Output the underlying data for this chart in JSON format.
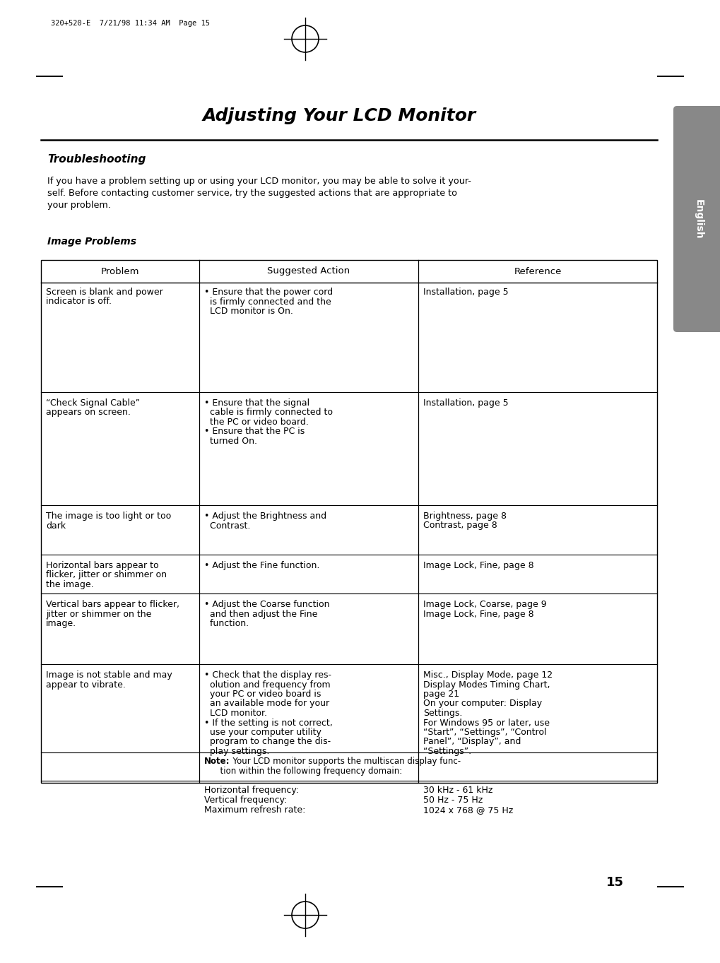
{
  "page_bg": "#ffffff",
  "header_text": "320+520-E  7/21/98 11:34 AM  Page 15",
  "title": "Adjusting Your LCD Monitor",
  "section_heading": "Troubleshooting",
  "intro_lines": [
    "If you have a problem setting up or using your LCD monitor, you may be able to solve it your-",
    "self. Before contacting customer service, try the suggested actions that are appropriate to",
    "your problem."
  ],
  "table_heading": "Image Problems",
  "col_headers": [
    "Problem",
    "Suggested Action",
    "Reference"
  ],
  "rows": [
    {
      "problem": "Screen is blank and power\nindicator is off.",
      "action": "• Ensure that the power cord\n  is firmly connected and the\n  LCD monitor is On.",
      "reference": "Installation, page 5"
    },
    {
      "problem": "“Check Signal Cable”\nappears on screen.",
      "action": "• Ensure that the signal\n  cable is firmly connected to\n  the PC or video board.\n• Ensure that the PC is\n  turned On.",
      "reference": "Installation, page 5"
    },
    {
      "problem": "The image is too light or too\ndark",
      "action": "• Adjust the Brightness and\n  Contrast.",
      "reference": "Brightness, page 8\nContrast, page 8"
    },
    {
      "problem": "Horizontal bars appear to\nflicker, jitter or shimmer on\nthe image.",
      "action": "• Adjust the Fine function.",
      "reference": "Image Lock, Fine, page 8"
    },
    {
      "problem": "Vertical bars appear to flicker,\njitter or shimmer on the\nimage.",
      "action": "• Adjust the Coarse function\n  and then adjust the Fine\n  function.",
      "reference": "Image Lock, Coarse, page 9\nImage Lock, Fine, page 8"
    },
    {
      "problem": "Image is not stable and may\nappear to vibrate.",
      "action": "• Check that the display res-\n  olution and frequency from\n  your PC or video board is\n  an available mode for your\n  LCD monitor.\n• If the setting is not correct,\n  use your computer utility\n  program to change the dis-\n  play settings.",
      "reference": "Misc., Display Mode, page 12\nDisplay Modes Timing Chart,\npage 21\nOn your computer: Display\nSettings.\nFor Windows 95 or later, use\n“Start”, “Settings”, “Control\nPanel”, “Display”, and\n“Settings”."
    }
  ],
  "note_bold": "Note:",
  "note_rest": "  Your LCD monitor supports the multiscan display func-\n      tion within the following frequency domain:",
  "freq_labels": [
    "Horizontal frequency:",
    "Vertical frequency:",
    "Maximum refresh rate:"
  ],
  "freq_values": [
    "30 kHz - 61 kHz",
    "50 Hz - 75 Hz",
    "1024 x 768 @ 75 Hz"
  ],
  "page_number": "15",
  "sidebar_color": "#888888",
  "sidebar_text": "English"
}
